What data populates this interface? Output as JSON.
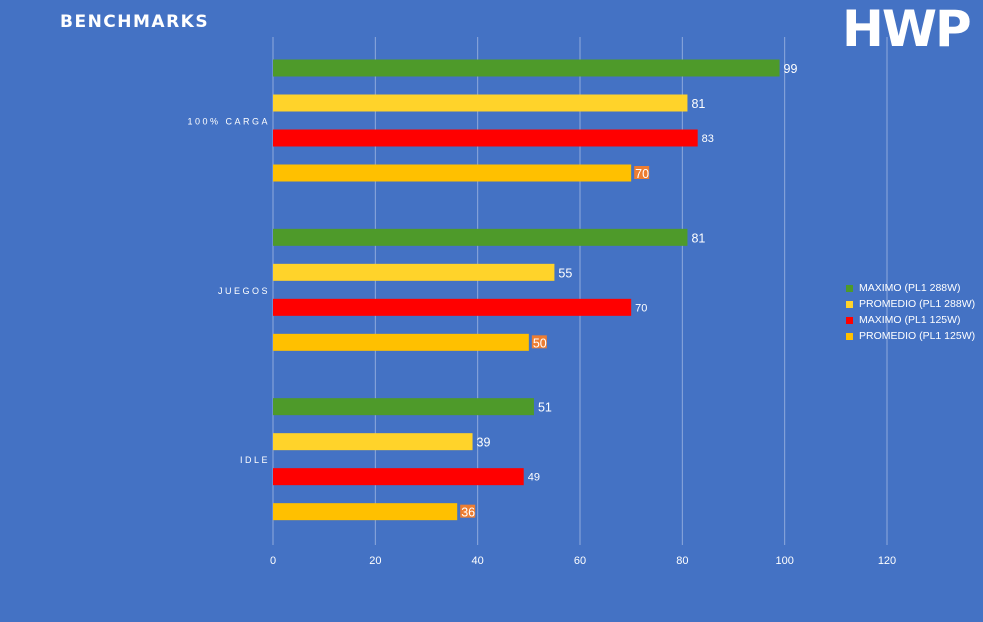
{
  "title": "BENCHMARKS",
  "logo": "HWP",
  "chart_data": {
    "type": "bar",
    "orientation": "horizontal",
    "categories": [
      "100% CARGA",
      "JUEGOS",
      "IDLE"
    ],
    "series": [
      {
        "name": "MAXIMO (PL1 288W)",
        "color": "#4e9a2a",
        "values": [
          99,
          81,
          51
        ]
      },
      {
        "name": "PROMEDIO (PL1 288W)",
        "color": "#ffd32a",
        "values": [
          81,
          55,
          39
        ]
      },
      {
        "name": "MAXIMO (PL1 125W)",
        "color": "#ff0000",
        "values": [
          83,
          70,
          49
        ]
      },
      {
        "name": "PROMEDIO (PL1 125W)",
        "color": "#ffc000",
        "values": [
          70,
          50,
          36
        ]
      }
    ],
    "xlim": [
      0,
      120
    ],
    "xticks": [
      0,
      20,
      40,
      60,
      80,
      100,
      120
    ],
    "grid": true,
    "legend_position": "right",
    "data_labels": true
  },
  "legend": [
    {
      "label": "MAXIMO (PL1 288W)",
      "color": "#4e9a2a"
    },
    {
      "label": "PROMEDIO (PL1 288W)",
      "color": "#ffd32a"
    },
    {
      "label": "MAXIMO (PL1 125W)",
      "color": "#ff0000"
    },
    {
      "label": "PROMEDIO (PL1 125W)",
      "color": "#ffc000"
    }
  ]
}
